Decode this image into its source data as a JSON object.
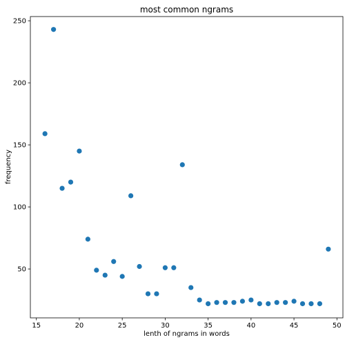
{
  "chart_data": {
    "type": "scatter",
    "title": "most common ngrams",
    "xlabel": "lenth of ngrams in words",
    "ylabel": "frequency",
    "xlim": [
      14.3,
      50.7
    ],
    "ylim": [
      10.6,
      253.4
    ],
    "xticks": [
      15,
      20,
      25,
      30,
      35,
      40,
      45,
      50
    ],
    "yticks": [
      50,
      100,
      150,
      200,
      250
    ],
    "grid": false,
    "marker_color": "#1f77b4",
    "series": [
      {
        "x": [
          16,
          17,
          18,
          19,
          20,
          21,
          22,
          23,
          24,
          25,
          26,
          27,
          28,
          29,
          30,
          31,
          32,
          33,
          34,
          35,
          36,
          37,
          38,
          39,
          40,
          41,
          42,
          43,
          44,
          45,
          46,
          47,
          48,
          49
        ],
        "y": [
          159,
          243,
          115,
          120,
          145,
          74,
          49,
          45,
          56,
          44,
          109,
          52,
          30,
          30,
          51,
          51,
          134,
          35,
          25,
          22,
          23,
          23,
          23,
          24,
          25,
          22,
          22,
          23,
          23,
          24,
          22,
          22,
          22,
          66
        ]
      }
    ]
  }
}
